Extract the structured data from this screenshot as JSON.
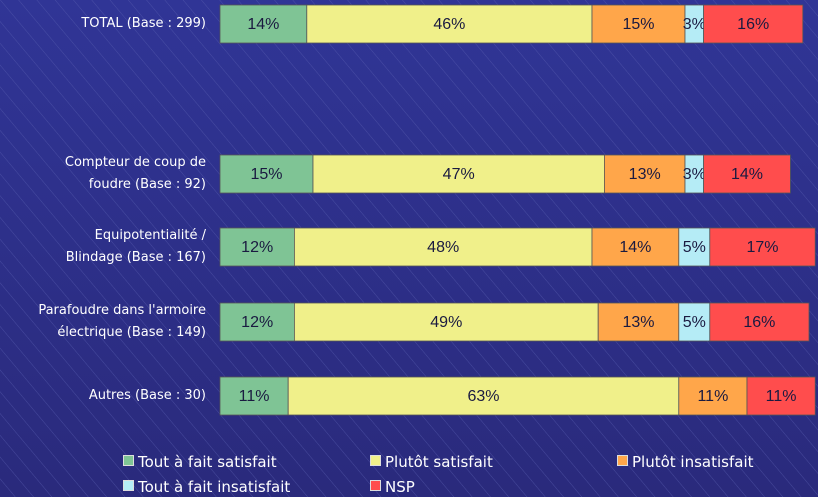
{
  "chart_data": {
    "type": "stacked-barh",
    "categories": [
      "TOTAL (Base : 299)",
      "Compteur de coup de\nfoudre (Base : 92)",
      "Equipotentialité /\nBlindage (Base : 167)",
      "Parafoudre dans l'armoire\nélectrique (Base : 149)",
      "Autres (Base : 30)"
    ],
    "xlim": [
      0,
      100
    ],
    "series": [
      {
        "name": "Tout à fait satisfait",
        "color": "#7fc495",
        "values": [
          14,
          15,
          12,
          12,
          11
        ],
        "value_labels": [
          "14%",
          "15%",
          "12%",
          "12%",
          "11%"
        ]
      },
      {
        "name": "Plutôt satisfait",
        "color": "#f0f08a",
        "values": [
          46,
          47,
          48,
          49,
          63
        ],
        "value_labels": [
          "46%",
          "47%",
          "48%",
          "49%",
          "63%"
        ]
      },
      {
        "name": "Plutôt insatisfait",
        "color": "#ffa64a",
        "values": [
          15,
          13,
          14,
          13,
          11
        ],
        "value_labels": [
          "15%",
          "13%",
          "14%",
          "13%",
          "11%"
        ]
      },
      {
        "name": "Tout à fait insatisfait",
        "color": "#b5ecf6",
        "values": [
          3,
          3,
          5,
          5,
          null
        ],
        "value_labels": [
          "3%",
          "3%",
          "5%",
          "5%",
          null
        ]
      },
      {
        "name": "NSP",
        "color": "#ff4d4d",
        "values": [
          16,
          14,
          17,
          16,
          11
        ],
        "value_labels": [
          "16%",
          "14%",
          "17%",
          "16%",
          "11%"
        ]
      }
    ]
  }
}
